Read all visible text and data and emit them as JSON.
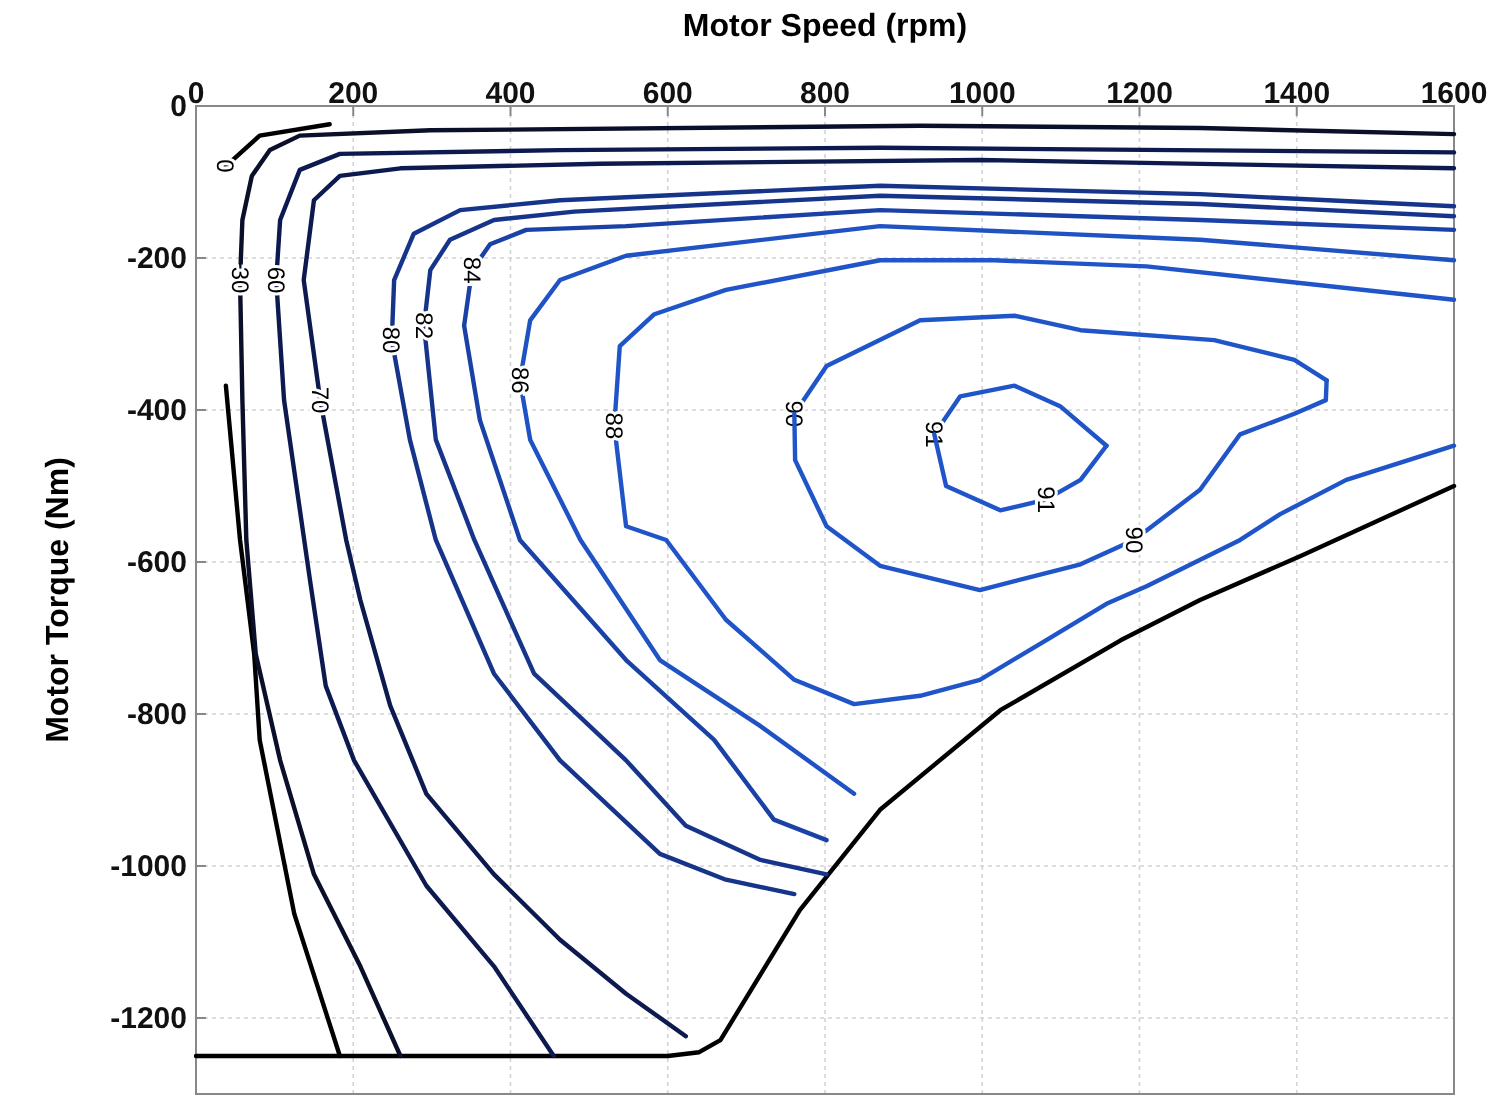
{
  "chart_data": {
    "type": "line",
    "xlabel": "Motor Speed (rpm)",
    "ylabel": "Motor Torque (Nm)",
    "xlim": [
      0,
      1600
    ],
    "ylim": [
      -1300,
      0
    ],
    "xticks": [
      0,
      200,
      400,
      600,
      800,
      1000,
      1200,
      1400,
      1600
    ],
    "yticks": [
      -1200,
      -1000,
      -800,
      -600,
      -400,
      -200,
      0
    ],
    "grid": true,
    "series": [
      {
        "color": "#000000",
        "x": [
          0,
          600,
          640,
          667,
          768,
          870,
          1023,
          1176,
          1277,
          1405,
          1600
        ],
        "values": [
          -1250,
          -1250,
          -1245,
          -1229,
          -1058,
          -926,
          -795,
          -703,
          -650,
          -592,
          -500
        ]
      },
      {
        "name": "0",
        "color": "#000000",
        "x": [
          170,
          81,
          38,
          null,
          38,
          56,
          74,
          81,
          125,
          183
        ],
        "values": [
          -24,
          -39,
          -79,
          null,
          -368,
          -571,
          -721,
          -834,
          -1063,
          -1250
        ]
      },
      {
        "name": "30",
        "color": "#0a0f2a",
        "x": [
          260,
          209,
          150,
          107,
          76,
          64,
          59,
          56,
          59,
          71,
          94,
          132,
          298,
          921,
          1277,
          1600
        ],
        "values": [
          -1250,
          -1132,
          -1011,
          -861,
          -721,
          -571,
          -387,
          -229,
          -150,
          -92,
          -58,
          -39,
          -32,
          -26,
          -29,
          -37
        ]
      },
      {
        "name": "60",
        "color": "#0c1a4f",
        "x": [
          455,
          379,
          293,
          201,
          165,
          145,
          112,
          102,
          107,
          132,
          183,
          463,
          870,
          1600
        ],
        "values": [
          -1250,
          -1132,
          -1026,
          -861,
          -763,
          -624,
          -387,
          -229,
          -150,
          -84,
          -63,
          -58,
          -55,
          -61
        ]
      },
      {
        "name": "70",
        "color": "#0c1a4f",
        "x": [
          623,
          547,
          463,
          379,
          293,
          247,
          209,
          191,
          158,
          137,
          150,
          183,
          260,
          514,
          997,
          1600
        ],
        "values": [
          -1224,
          -1168,
          -1097,
          -1011,
          -905,
          -789,
          -650,
          -571,
          -387,
          -229,
          -124,
          -92,
          -82,
          -76,
          -71,
          -82
        ]
      },
      {
        "name": "80",
        "color": "#16358a",
        "x": [
          761,
          674,
          590,
          463,
          379,
          305,
          272,
          249,
          252,
          277,
          336,
          463,
          870,
          1277,
          1600
        ],
        "values": [
          -1037,
          -1018,
          -984,
          -861,
          -747,
          -571,
          -439,
          -308,
          -229,
          -168,
          -137,
          -124,
          -105,
          -116,
          -132
        ]
      },
      {
        "name": "82",
        "color": "#16358a",
        "x": [
          802,
          718,
          623,
          547,
          430,
          354,
          305,
          290,
          298,
          323,
          379,
          481,
          870,
          1277,
          1600
        ],
        "values": [
          -1011,
          -992,
          -947,
          -861,
          -747,
          -571,
          -439,
          -289,
          -216,
          -176,
          -150,
          -139,
          -118,
          -129,
          -145
        ]
      },
      {
        "name": "84",
        "color": "#1a42a6",
        "x": [
          802,
          735,
          659,
          547,
          412,
          361,
          341,
          351,
          374,
          420,
          547,
          870,
          1277,
          1600
        ],
        "values": [
          -966,
          -939,
          -834,
          -729,
          -571,
          -413,
          -289,
          -216,
          -182,
          -163,
          -158,
          -137,
          -150,
          -163
        ]
      },
      {
        "name": "86",
        "color": "#1f52c2",
        "x": [
          837,
          718,
          590,
          489,
          425,
          412,
          425,
          463,
          547,
          870,
          1277,
          1600
        ],
        "values": [
          -905,
          -816,
          -729,
          -571,
          -439,
          -361,
          -282,
          -229,
          -197,
          -158,
          -176,
          -203
        ]
      },
      {
        "name": "88",
        "color": "#1f55c8",
        "x": [
          1600,
          1209,
          1015,
          870,
          674,
          583,
          539,
          532,
          547,
          598,
          674,
          761,
          837,
          921,
          997,
          1081,
          1158,
          1209,
          1328,
          1379,
          1463,
          1600
        ],
        "values": [
          -255,
          -211,
          -203,
          -203,
          -242,
          -274,
          -316,
          -421,
          -553,
          -571,
          -676,
          -755,
          -787,
          -776,
          -755,
          -703,
          -655,
          -632,
          -571,
          -537,
          -492,
          -447
        ]
      },
      {
        "name": "90",
        "color": "#1f55c8",
        "x": [
          761,
          802,
          921,
          1041,
          1125,
          1295,
          1397,
          1438
        ],
        "values": [
          -405,
          -342,
          -282,
          -276,
          -295,
          -308,
          -334,
          -361
        ]
      },
      {
        "name": "90",
        "color": "#1f55c8",
        "x": [
          761,
          762,
          802,
          870,
          997,
          1125,
          1193,
          1277,
          1328,
          1397,
          1437,
          1438
        ],
        "values": [
          -405,
          -466,
          -553,
          -605,
          -637,
          -603,
          -571,
          -505,
          -432,
          -405,
          -387,
          -361
        ]
      },
      {
        "name": "91",
        "color": "#1f55c8",
        "x": [
          939,
          972,
          1041,
          1099,
          1158
        ],
        "values": [
          -432,
          -382,
          -368,
          -395,
          -447
        ]
      },
      {
        "name": "91",
        "color": "#1f55c8",
        "x": [
          939,
          954,
          1023,
          1081,
          1125,
          1158
        ],
        "values": [
          -432,
          -500,
          -532,
          -518,
          -492,
          -447
        ]
      }
    ]
  }
}
